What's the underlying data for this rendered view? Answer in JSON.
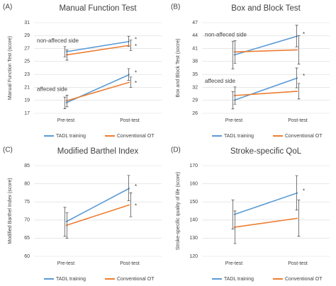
{
  "chart_data": [
    {
      "type": "line",
      "panel": "(A)",
      "title": "Manual Function Test",
      "ylabel": "Manual Function Test (score)",
      "categories": [
        "Pre-test",
        "Post-test"
      ],
      "ylim": [
        17,
        31
      ],
      "yticks": [
        17,
        19,
        21,
        23,
        25,
        27,
        29,
        31
      ],
      "grid": true,
      "legend": [
        {
          "name": "TADL training",
          "color": "#5b9bd5"
        },
        {
          "name": "Conventional OT",
          "color": "#ed7d31"
        }
      ],
      "groups": [
        {
          "label": "non-affeced side",
          "series": [
            {
              "values": [
                26.5,
                28.1
              ],
              "errors": [
                0.8,
                0.8
              ],
              "markers": [
                null,
                "*"
              ]
            },
            {
              "values": [
                26.0,
                27.5
              ],
              "errors": [
                0.8,
                0.8
              ],
              "markers": [
                null,
                "*"
              ]
            }
          ]
        },
        {
          "label": "affeced side",
          "series": [
            {
              "values": [
                18.6,
                23.0
              ],
              "errors": [
                0.9,
                0.9
              ],
              "markers": [
                null,
                "*"
              ]
            },
            {
              "values": [
                18.9,
                21.8
              ],
              "errors": [
                0.9,
                0.8
              ],
              "markers": [
                null,
                "*"
              ]
            }
          ]
        }
      ]
    },
    {
      "type": "line",
      "panel": "(B)",
      "title": "Box and Block Test",
      "ylabel": "Box and Block Test (socre)",
      "categories": [
        "Pre-test",
        "Post-test"
      ],
      "ylim": [
        26,
        47
      ],
      "yticks": [
        26,
        29,
        32,
        35,
        38,
        41,
        44,
        47
      ],
      "grid": true,
      "legend": [
        {
          "name": "TADL training",
          "color": "#5b9bd5"
        },
        {
          "name": "Conventional OT",
          "color": "#ed7d31"
        }
      ],
      "groups": [
        {
          "label": "non-affeced side",
          "series": [
            {
              "values": [
                39.5,
                43.9
              ],
              "errors": [
                3.2,
                2.5
              ],
              "markers": [
                null,
                "*"
              ]
            },
            {
              "values": [
                40.2,
                40.7
              ],
              "errors": [
                2.6,
                3.3
              ],
              "markers": [
                null,
                null
              ]
            }
          ]
        },
        {
          "label": "affeced side",
          "series": [
            {
              "values": [
                29.0,
                34.2
              ],
              "errors": [
                2.0,
                2.3
              ],
              "markers": [
                null,
                "*"
              ]
            },
            {
              "values": [
                30.1,
                31.1
              ],
              "errors": [
                2.0,
                1.8
              ],
              "markers": [
                null,
                null
              ]
            }
          ]
        }
      ]
    },
    {
      "type": "line",
      "panel": "(C)",
      "title": "Modified Barthel Index",
      "ylabel": "Modified Barthel Index (score)",
      "categories": [
        "Pre-test",
        "Post-test"
      ],
      "ylim": [
        60,
        85
      ],
      "yticks": [
        60,
        65,
        70,
        75,
        80,
        85
      ],
      "grid": true,
      "legend": [
        {
          "name": "TADL training",
          "color": "#5b9bd5"
        },
        {
          "name": "Conventional OT",
          "color": "#ed7d31"
        }
      ],
      "groups": [
        {
          "label": null,
          "series": [
            {
              "values": [
                69.5,
                78.8
              ],
              "errors": [
                4.0,
                3.5
              ],
              "markers": [
                null,
                "*"
              ]
            },
            {
              "values": [
                68.5,
                74.2
              ],
              "errors": [
                3.5,
                3.3
              ],
              "markers": [
                null,
                "*"
              ]
            }
          ]
        }
      ]
    },
    {
      "type": "line",
      "panel": "(D)",
      "title": "Stroke-specific QoL",
      "ylabel": "Stroke-specific quality of life (score)",
      "categories": [
        "Pre-test",
        "Post-test"
      ],
      "ylim": [
        120,
        170
      ],
      "yticks": [
        120,
        130,
        140,
        150,
        160,
        170
      ],
      "grid": true,
      "legend": [
        {
          "name": "TADL training",
          "color": "#5b9bd5"
        },
        {
          "name": "Conventional OT",
          "color": "#ed7d31"
        }
      ],
      "groups": [
        {
          "label": null,
          "series": [
            {
              "values": [
                143,
                155
              ],
              "errors": [
                8,
                9.5
              ],
              "markers": [
                null,
                "*"
              ]
            },
            {
              "values": [
                136,
                141
              ],
              "errors": [
                9,
                10
              ],
              "markers": [
                null,
                null
              ]
            }
          ]
        }
      ]
    }
  ]
}
